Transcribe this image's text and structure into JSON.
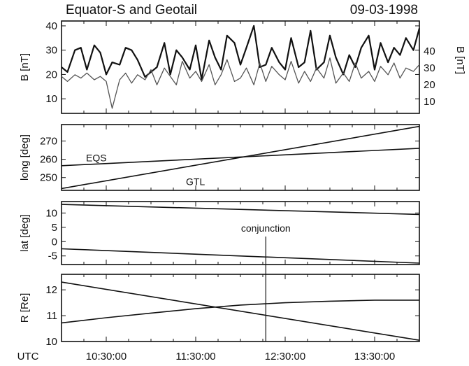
{
  "chart_data": {
    "type": "line",
    "title": "Equator-S and Geotail",
    "date": "09-03-1998",
    "x_axis": {
      "label": "UTC",
      "range": [
        "10:00:00",
        "14:00:00"
      ],
      "tick_labels": [
        "10:30:00",
        "11:30:00",
        "12:30:00",
        "13:30:00"
      ]
    },
    "conjunction": {
      "label": "conjunction",
      "time": "12:17:00"
    },
    "panels": [
      {
        "id": "field",
        "ylabel": "B [nT]",
        "ylabel_right": "B [nT]",
        "ylim": [
          4,
          42
        ],
        "yticks": [
          10,
          20,
          30,
          40
        ],
        "ylim_right": [
          3,
          58
        ],
        "yticks_right": [
          10,
          20,
          30,
          40
        ],
        "series": [
          {
            "axis": "left",
            "style": "thick",
            "x": [
              "10:00",
              "10:04",
              "10:09",
              "10:13",
              "10:17",
              "10:22",
              "10:26",
              "10:30",
              "10:34",
              "10:39",
              "10:43",
              "10:47",
              "10:51",
              "10:56",
              "11:00",
              "11:04",
              "11:09",
              "11:13",
              "11:17",
              "11:21",
              "11:26",
              "11:30",
              "11:34",
              "11:39",
              "11:43",
              "11:47",
              "11:51",
              "11:56",
              "12:00",
              "12:04",
              "12:09",
              "12:13",
              "12:17",
              "12:21",
              "12:26",
              "12:30",
              "12:34",
              "12:39",
              "12:43",
              "12:47",
              "12:51",
              "12:56",
              "13:00",
              "13:04",
              "13:09",
              "13:13",
              "13:17",
              "13:21",
              "13:26",
              "13:30",
              "13:34",
              "13:39",
              "13:43",
              "13:47",
              "13:51",
              "13:56",
              "14:00"
            ],
            "values": [
              23,
              21,
              30,
              31,
              22,
              32,
              29,
              20,
              25,
              24,
              31,
              30,
              26,
              19,
              21,
              23,
              33,
              20,
              30,
              27,
              22,
              32,
              18,
              34,
              27,
              22,
              36,
              33,
              24,
              31,
              40,
              23,
              24,
              31,
              25,
              22,
              35,
              23,
              25,
              38,
              22,
              25,
              36,
              27,
              20,
              28,
              23,
              31,
              36,
              22,
              33,
              25,
              31,
              28,
              35,
              30,
              39
            ]
          },
          {
            "axis": "right",
            "style": "thin",
            "x": [
              "10:00",
              "10:04",
              "10:09",
              "10:13",
              "10:17",
              "10:22",
              "10:26",
              "10:30",
              "10:34",
              "10:39",
              "10:43",
              "10:47",
              "10:51",
              "10:56",
              "11:00",
              "11:04",
              "11:09",
              "11:13",
              "11:17",
              "11:21",
              "11:26",
              "11:30",
              "11:34",
              "11:39",
              "11:43",
              "11:47",
              "11:51",
              "11:56",
              "12:00",
              "12:04",
              "12:09",
              "12:13",
              "12:17",
              "12:21",
              "12:26",
              "12:30",
              "12:34",
              "12:39",
              "12:43",
              "12:47",
              "12:51",
              "12:56",
              "13:00",
              "13:04",
              "13:09",
              "13:13",
              "13:17",
              "13:21",
              "13:26",
              "13:30",
              "13:34",
              "13:39",
              "13:43",
              "13:47",
              "13:51",
              "13:56",
              "14:00"
            ],
            "values": [
              25,
              22,
              26,
              24,
              27,
              23,
              25,
              22,
              6,
              23,
              27,
              21,
              26,
              23,
              29,
              20,
              30,
              25,
              20,
              34,
              24,
              28,
              22,
              32,
              20,
              26,
              35,
              22,
              24,
              30,
              20,
              33,
              22,
              31,
              26,
              23,
              34,
              21,
              28,
              22,
              30,
              24,
              36,
              21,
              27,
              22,
              33,
              24,
              28,
              22,
              31,
              26,
              33,
              24,
              30,
              28,
              32
            ]
          }
        ]
      },
      {
        "id": "longitude",
        "ylabel": "long [deg]",
        "ylim": [
          243,
          279
        ],
        "yticks": [
          250,
          260,
          270
        ],
        "series": [
          {
            "name": "EQS",
            "x": [
              "10:00",
              "14:00"
            ],
            "values": [
              256.5,
              266
            ]
          },
          {
            "name": "GTL",
            "x": [
              "10:00",
              "14:00"
            ],
            "values": [
              244,
              278
            ]
          }
        ]
      },
      {
        "id": "latitude",
        "ylabel": "lat [deg]",
        "ylim": [
          -8,
          14
        ],
        "yticks": [
          -5,
          0,
          5,
          10
        ],
        "series": [
          {
            "x": [
              "10:00",
              "14:00"
            ],
            "values": [
              13,
              9.5
            ]
          },
          {
            "x": [
              "10:00",
              "14:00"
            ],
            "values": [
              -2.5,
              -7.5
            ]
          }
        ]
      },
      {
        "id": "radius",
        "ylabel": "R [Re]",
        "ylim": [
          10,
          12.6
        ],
        "yticks": [
          10,
          11,
          12
        ],
        "series": [
          {
            "x": [
              "10:00",
              "14:00"
            ],
            "values": [
              12.3,
              10.05
            ]
          },
          {
            "x": [
              "10:00",
              "10:30",
              "11:00",
              "11:30",
              "12:00",
              "12:30",
              "13:00",
              "13:30",
              "14:00"
            ],
            "values": [
              10.72,
              10.92,
              11.1,
              11.27,
              11.41,
              11.5,
              11.56,
              11.6,
              11.6
            ]
          }
        ]
      }
    ]
  }
}
